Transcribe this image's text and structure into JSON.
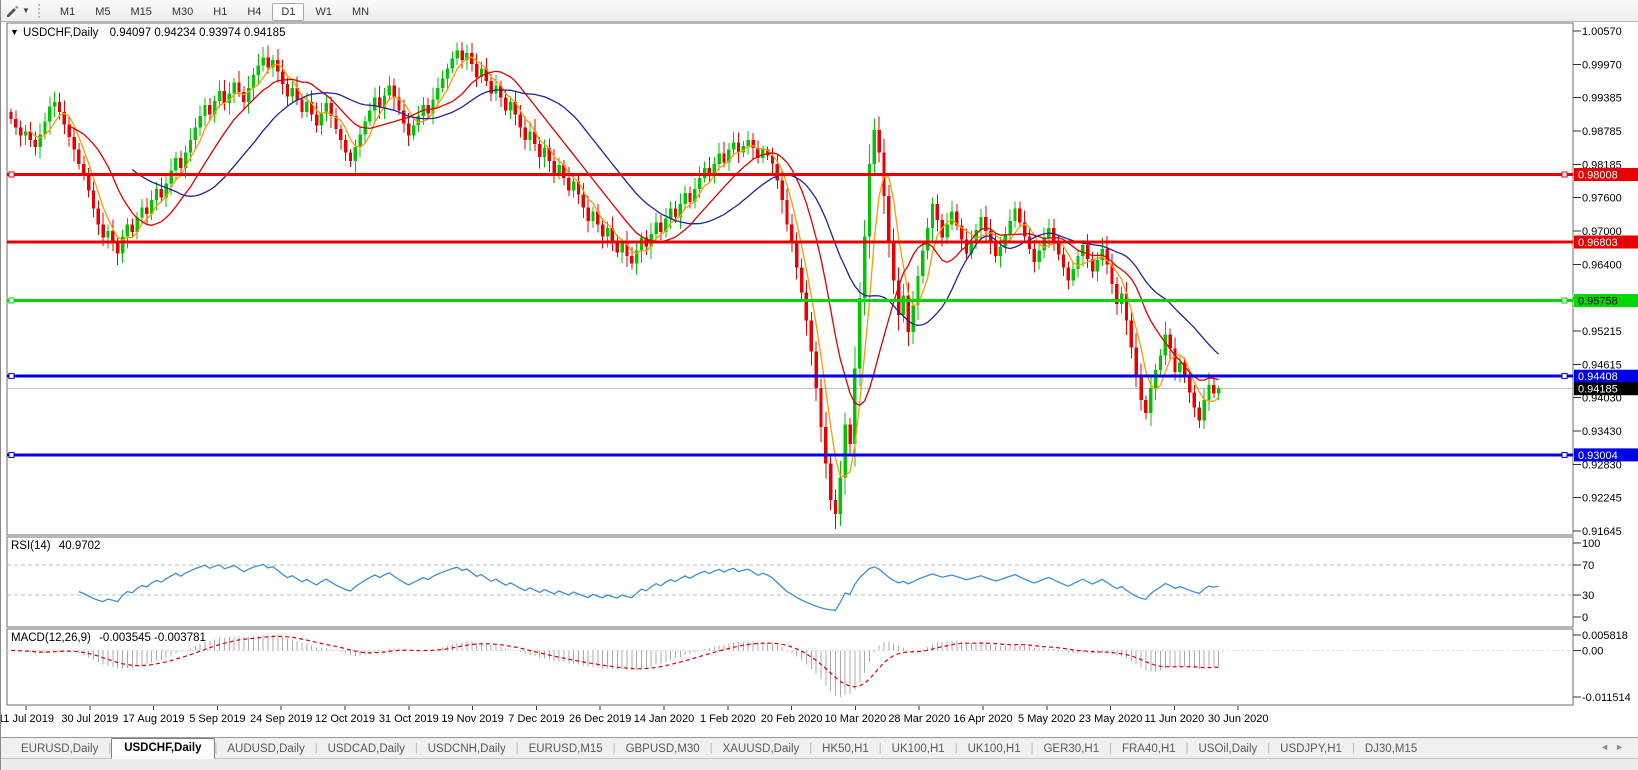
{
  "toolbar": {
    "timeframes": [
      "M1",
      "M5",
      "M15",
      "M30",
      "H1",
      "H4",
      "D1",
      "W1",
      "MN"
    ],
    "active_timeframe": "D1",
    "tool_icon": "drawing-tool-icon",
    "dropdown_icon": "chevron-down-icon"
  },
  "chart": {
    "symbol_label": "USDCHF,Daily",
    "ohlc_text": "0.94097 0.94234 0.93974 0.94185"
  },
  "rsi_panel": {
    "label": "RSI(14)",
    "value_text": "40.9702"
  },
  "macd_panel": {
    "label": "MACD(12,26,9)",
    "values_text": "-0.003545 -0.003781"
  },
  "chart_data": {
    "type": "candlestick",
    "symbol": "USDCHF",
    "timeframe": "Daily",
    "price_range": [
      0.91574,
      1.00712
    ],
    "y_ticks": [
      "1.00570",
      "0.99970",
      "0.99385",
      "0.98785",
      "0.98185",
      "0.97600",
      "0.97000",
      "0.96400",
      "0.95800",
      "0.95215",
      "0.94615",
      "0.94030",
      "0.93430",
      "0.92830",
      "0.92245",
      "0.91645"
    ],
    "x_labels": [
      "11 Jul 2019",
      "30 Jul 2019",
      "17 Aug 2019",
      "5 Sep 2019",
      "24 Sep 2019",
      "12 Oct 2019",
      "31 Oct 2019",
      "19 Nov 2019",
      "7 Dec 2019",
      "26 Dec 2019",
      "14 Jan 2020",
      "1 Feb 2020",
      "20 Feb 2020",
      "10 Mar 2020",
      "28 Mar 2020",
      "16 Apr 2020",
      "5 May 2020",
      "23 May 2020",
      "11 Jun 2020",
      "30 Jun 2020"
    ],
    "up_color": "#00C400",
    "down_color": "#E60000",
    "closes": [
      0.99,
      0.9885,
      0.987,
      0.9878,
      0.9862,
      0.985,
      0.9872,
      0.9895,
      0.9922,
      0.993,
      0.9912,
      0.989,
      0.9868,
      0.9845,
      0.982,
      0.98,
      0.9772,
      0.974,
      0.9712,
      0.9688,
      0.97,
      0.9682,
      0.966,
      0.969,
      0.9712,
      0.9698,
      0.9724,
      0.9742,
      0.973,
      0.9755,
      0.9775,
      0.976,
      0.9785,
      0.9808,
      0.983,
      0.9812,
      0.984,
      0.9862,
      0.9885,
      0.9905,
      0.9925,
      0.9908,
      0.9932,
      0.995,
      0.9928,
      0.9945,
      0.9965,
      0.9948,
      0.993,
      0.9955,
      0.9978,
      0.9995,
      1.001,
      0.9992,
      1.0005,
      0.9985,
      0.9962,
      0.994,
      0.9955,
      0.9935,
      0.9912,
      0.993,
      0.9908,
      0.9888,
      0.991,
      0.9928,
      0.9905,
      0.9882,
      0.9862,
      0.984,
      0.9825,
      0.985,
      0.9872,
      0.9895,
      0.9915,
      0.9938,
      0.992,
      0.9942,
      0.996,
      0.9938,
      0.9915,
      0.9892,
      0.987,
      0.9888,
      0.9905,
      0.9925,
      0.991,
      0.9935,
      0.9955,
      0.9972,
      0.999,
      1.0008,
      1.0022,
      1.0005,
      1.0018,
      0.9998,
      0.9975,
      0.999,
      0.9968,
      0.9945,
      0.996,
      0.9938,
      0.9915,
      0.993,
      0.9908,
      0.9885,
      0.9862,
      0.9878,
      0.9855,
      0.9832,
      0.9848,
      0.9825,
      0.9802,
      0.9818,
      0.9795,
      0.9772,
      0.9788,
      0.9765,
      0.9742,
      0.9718,
      0.9735,
      0.9712,
      0.969,
      0.9705,
      0.9682,
      0.9662,
      0.9678,
      0.9655,
      0.9642,
      0.9665,
      0.9688,
      0.9672,
      0.9695,
      0.9715,
      0.9698,
      0.9722,
      0.974,
      0.9725,
      0.9748,
      0.9768,
      0.9752,
      0.9775,
      0.9795,
      0.9812,
      0.9798,
      0.982,
      0.9838,
      0.9822,
      0.9845,
      0.9858,
      0.984,
      0.9852,
      0.9862,
      0.9848,
      0.983,
      0.9845,
      0.9835,
      0.982,
      0.979,
      0.9755,
      0.9712,
      0.968,
      0.9635,
      0.959,
      0.954,
      0.9485,
      0.942,
      0.935,
      0.9285,
      0.922,
      0.9195,
      0.926,
      0.9355,
      0.932,
      0.9455,
      0.958,
      0.969,
      0.982,
      0.988,
      0.984,
      0.9762,
      0.968,
      0.9612,
      0.955,
      0.9585,
      0.952,
      0.9568,
      0.962,
      0.9665,
      0.9705,
      0.9748,
      0.972,
      0.9688,
      0.9712,
      0.9735,
      0.971,
      0.9685,
      0.966,
      0.968,
      0.9702,
      0.9725,
      0.97,
      0.9678,
      0.9655,
      0.9672,
      0.9695,
      0.9718,
      0.974,
      0.9715,
      0.969,
      0.9668,
      0.9645,
      0.9665,
      0.9688,
      0.9705,
      0.9682,
      0.9658,
      0.9635,
      0.9612,
      0.9632,
      0.9655,
      0.9675,
      0.965,
      0.9628,
      0.9648,
      0.9668,
      0.964,
      0.9605,
      0.957,
      0.9588,
      0.954,
      0.9492,
      0.944,
      0.9398,
      0.9375,
      0.942,
      0.9452,
      0.9478,
      0.9515,
      0.949,
      0.9448,
      0.9465,
      0.944,
      0.9412,
      0.9385,
      0.9362,
      0.9398,
      0.9425,
      0.941,
      0.94185
    ],
    "final_candle": {
      "open": 0.94097,
      "high": 0.94234,
      "low": 0.93974,
      "close": 0.94185
    },
    "overrides": {
      "170": {
        "low": 0.9168
      },
      "178": {
        "high": 0.9901
      }
    },
    "moving_averages": [
      {
        "period": 5,
        "color": "#FF9900"
      },
      {
        "period": 13,
        "color": "#E00000"
      },
      {
        "period": 26,
        "color": "#222299"
      }
    ],
    "h_lines": [
      {
        "price": 0.98008,
        "label": "0.98008",
        "color": "#E80000",
        "text_color": "#FFFFFF",
        "selected": true
      },
      {
        "price": 0.96803,
        "label": "0.96803",
        "color": "#E80000",
        "text_color": "#FFFFFF",
        "selected": false
      },
      {
        "price": 0.95758,
        "label": "0.95758",
        "color": "#00D800",
        "text_color": "#000000",
        "selected": true
      },
      {
        "price": 0.94408,
        "label": "0.94408",
        "color": "#0000E6",
        "text_color": "#FFFFFF",
        "selected": true
      },
      {
        "price": 0.93004,
        "label": "0.93004",
        "color": "#0000E6",
        "text_color": "#FFFFFF",
        "selected": true
      }
    ],
    "current_price": {
      "value": 0.94185,
      "label": "0.94185",
      "line_color": "#BEBEBE",
      "label_bg": "#000000",
      "label_text": "#FFFFFF"
    },
    "rsi": {
      "period": 14,
      "color": "#3E8FD8",
      "levels": [
        70,
        30
      ],
      "ticks": [
        "100",
        "70",
        "30",
        "0"
      ],
      "range": [
        0,
        100
      ]
    },
    "macd": {
      "fast": 12,
      "slow": 26,
      "signal": 9,
      "hist_color": "#ABABAB",
      "signal_color": "#E00000",
      "ticks": [
        "0.005818",
        "0.00",
        "-0.011514"
      ]
    }
  },
  "tabs": {
    "items": [
      {
        "label": "EURUSD,Daily",
        "active": false
      },
      {
        "label": "USDCHF,Daily",
        "active": true
      },
      {
        "label": "AUDUSD,Daily",
        "active": false
      },
      {
        "label": "USDCAD,Daily",
        "active": false
      },
      {
        "label": "USDCNH,Daily",
        "active": false
      },
      {
        "label": "EURUSD,M15",
        "active": false
      },
      {
        "label": "GBPUSD,M30",
        "active": false
      },
      {
        "label": "XAUUSD,Daily",
        "active": false
      },
      {
        "label": "HK50,H1",
        "active": false
      },
      {
        "label": "UK100,H1",
        "active": false
      },
      {
        "label": "UK100,H1",
        "active": false
      },
      {
        "label": "GER30,H1",
        "active": false
      },
      {
        "label": "FRA40,H1",
        "active": false
      },
      {
        "label": "USOil,Daily",
        "active": false
      },
      {
        "label": "USDJPY,H1",
        "active": false
      },
      {
        "label": "DJ30,M15",
        "active": false
      }
    ],
    "scroll_left": "◄",
    "scroll_right": "►"
  }
}
